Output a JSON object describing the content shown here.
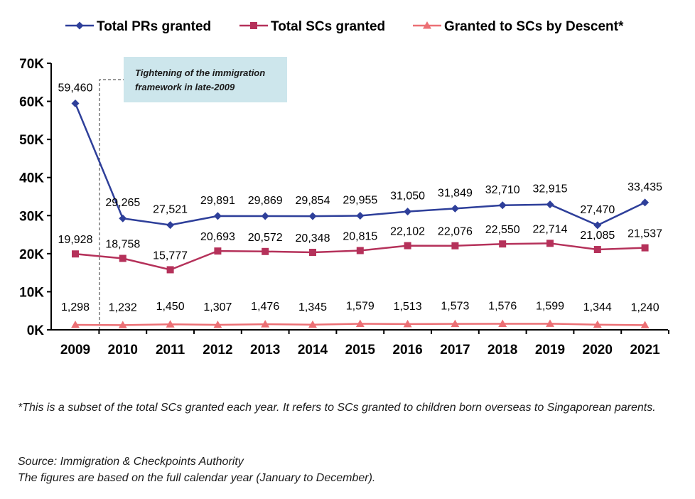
{
  "chart_data": {
    "type": "line",
    "categories": [
      "2009",
      "2010",
      "2011",
      "2012",
      "2013",
      "2014",
      "2015",
      "2016",
      "2017",
      "2018",
      "2019",
      "2020",
      "2021"
    ],
    "ylim": [
      0,
      70000
    ],
    "yticks": [
      0,
      10000,
      20000,
      30000,
      40000,
      50000,
      60000,
      70000
    ],
    "ytick_labels": [
      "0K",
      "10K",
      "20K",
      "30K",
      "40K",
      "50K",
      "60K",
      "70K"
    ],
    "series": [
      {
        "name": "Total PRs granted",
        "color": "#2e3f9a",
        "marker": "diamond",
        "values": [
          59460,
          29265,
          27521,
          29891,
          29869,
          29854,
          29955,
          31050,
          31849,
          32710,
          32915,
          27470,
          33435
        ],
        "labels": [
          "59,460",
          "29,265",
          "27,521",
          "29,891",
          "29,869",
          "29,854",
          "29,955",
          "31,050",
          "31,849",
          "32,710",
          "32,915",
          "27,470",
          "33,435"
        ]
      },
      {
        "name": "Total SCs granted",
        "color": "#b5315a",
        "marker": "square",
        "values": [
          19928,
          18758,
          15777,
          20693,
          20572,
          20348,
          20815,
          22102,
          22076,
          22550,
          22714,
          21085,
          21537
        ],
        "labels": [
          "19,928",
          "18,758",
          "15,777",
          "20,693",
          "20,572",
          "20,348",
          "20,815",
          "22,102",
          "22,076",
          "22,550",
          "22,714",
          "21,085",
          "21,537"
        ]
      },
      {
        "name": "Granted to SCs by Descent*",
        "color": "#ec7075",
        "marker": "triangle",
        "values": [
          1298,
          1232,
          1450,
          1307,
          1476,
          1345,
          1579,
          1513,
          1573,
          1576,
          1599,
          1344,
          1240
        ],
        "labels": [
          "1,298",
          "1,232",
          "1,450",
          "1,307",
          "1,476",
          "1,345",
          "1,579",
          "1,513",
          "1,573",
          "1,576",
          "1,599",
          "1,344",
          "1,240"
        ]
      }
    ],
    "annotation": {
      "lines": [
        "Tightening of the immigration",
        "framework in late-2009"
      ],
      "fill": "#cde6ec",
      "at_category": "2009"
    }
  },
  "footnotes": {
    "subset": "*This is a subset of the total SCs granted each year. It refers to SCs granted to children born overseas to Singaporean parents.",
    "source": "Source: Immigration & Checkpoints Authority",
    "period": "The figures are based on the full calendar year (January to December)."
  }
}
